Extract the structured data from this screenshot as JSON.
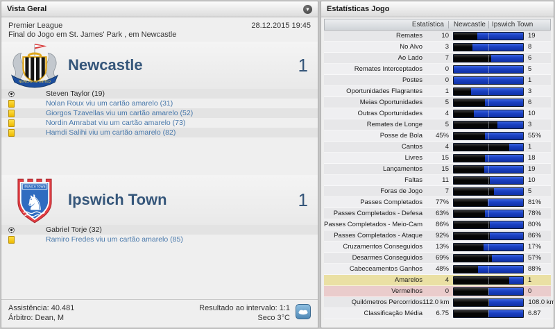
{
  "left_panel": {
    "title": "Vista Geral",
    "competition": "Premier League",
    "datetime": "28.12.2015 19:45",
    "match_info": "Final do Jogo em St. James' Park , em Newcastle",
    "teams": [
      {
        "name": "Newcastle",
        "score": "1",
        "crest_text": "NEWCASTLE UNITED",
        "events": [
          {
            "type": "goal",
            "text": "Steven Taylor (19)"
          },
          {
            "type": "yellow-card",
            "text": "Nolan Roux viu um cartão amarelo (31)"
          },
          {
            "type": "yellow-card",
            "text": "Giorgos Tzavellas viu um cartão amarelo (52)"
          },
          {
            "type": "yellow-card",
            "text": "Nordin Amrabat viu um cartão amarelo (73)"
          },
          {
            "type": "yellow-card",
            "text": "Hamdi Salihi viu um cartão amarelo (82)"
          }
        ]
      },
      {
        "name": "Ipswich Town",
        "score": "1",
        "crest_text": "IPSWICH TOWN",
        "events": [
          {
            "type": "goal",
            "text": "Gabriel Torje (32)"
          },
          {
            "type": "yellow-card",
            "text": "Ramiro Fredes viu um cartão amarelo (85)"
          }
        ]
      }
    ],
    "footer": {
      "attendance": "Assistência: 40.481",
      "referee": "Árbitro: Dean, M",
      "halftime_result": "Resultado ao intervalo: 1:1",
      "weather": "Seco 3°C"
    }
  },
  "right_panel": {
    "title": "Estatísticas Jogo",
    "table": {
      "headers": [
        "Estatística",
        "Newcastle",
        "Ipswich Town"
      ],
      "rows": [
        {
          "label": "Remates",
          "home": "10",
          "away": "19"
        },
        {
          "label": "No Alvo",
          "home": "3",
          "away": "8"
        },
        {
          "label": "Ao Lado",
          "home": "7",
          "away": "6"
        },
        {
          "label": "Remates Interceptados",
          "home": "0",
          "away": "5"
        },
        {
          "label": "Postes",
          "home": "0",
          "away": "1"
        },
        {
          "label": "Oportunidades Flagrantes",
          "home": "1",
          "away": "3"
        },
        {
          "label": "Meias Oportunidades",
          "home": "5",
          "away": "6"
        },
        {
          "label": "Outras Oportunidades",
          "home": "4",
          "away": "10"
        },
        {
          "label": "Remates de Longe",
          "home": "5",
          "away": "3"
        },
        {
          "label": "Posse de Bola",
          "home": "45%",
          "away": "55%"
        },
        {
          "label": "Cantos",
          "home": "4",
          "away": "1"
        },
        {
          "label": "Livres",
          "home": "15",
          "away": "18"
        },
        {
          "label": "Lançamentos",
          "home": "15",
          "away": "19"
        },
        {
          "label": "Faltas",
          "home": "11",
          "away": "10"
        },
        {
          "label": "Foras de Jogo",
          "home": "7",
          "away": "5"
        },
        {
          "label": "Passes Completados",
          "home": "77%",
          "away": "81%"
        },
        {
          "label": "Passes Completados - Defesa",
          "home": "63%",
          "away": "78%"
        },
        {
          "label": "Passes Completados - Meio-Campo",
          "home": "86%",
          "away": "80%"
        },
        {
          "label": "Passes Completados - Ataque",
          "home": "92%",
          "away": "86%"
        },
        {
          "label": "Cruzamentos Conseguidos",
          "home": "13%",
          "away": "17%"
        },
        {
          "label": "Desarmes Conseguidos",
          "home": "69%",
          "away": "57%"
        },
        {
          "label": "Cabeceamentos Ganhos",
          "home": "48%",
          "away": "88%"
        },
        {
          "label": "Amarelos",
          "home": "4",
          "away": "1",
          "highlight": "yellow"
        },
        {
          "label": "Vermelhos",
          "home": "0",
          "away": "0",
          "highlight": "red"
        },
        {
          "label": "Quilómetros Percorridos",
          "home": "112.0 km",
          "away": "108.0 km"
        },
        {
          "label": "Classificação Média",
          "home": "6.75",
          "away": "6.87"
        }
      ]
    }
  },
  "icons": {
    "chevron_down": "▾",
    "horse": "♞"
  },
  "colors": {
    "bar_home": "#050505",
    "bar_away": "#0e2fa6",
    "highlight_yellow_row": "#eae0a4",
    "highlight_red_row": "#eacccc",
    "team_name": "#35567a",
    "card_link": "#4878ab"
  }
}
